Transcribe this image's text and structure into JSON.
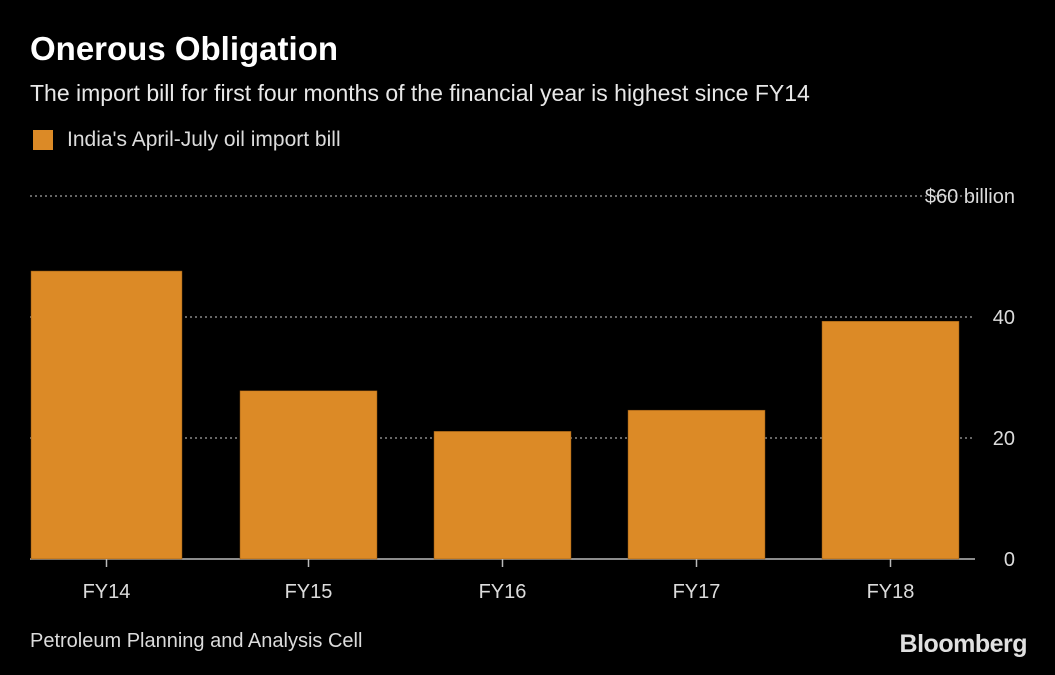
{
  "chart_data": {
    "type": "bar",
    "title": "Onerous Obligation",
    "subtitle": "The import bill for first four months of the financial year is highest since FY14",
    "categories": [
      "FY14",
      "FY15",
      "FY16",
      "FY17",
      "FY18"
    ],
    "series": [
      {
        "name": "India's April-July oil import bill",
        "values": [
          47.6,
          27.8,
          21.1,
          24.6,
          39.3
        ],
        "color": "#dc8a26"
      }
    ],
    "ylim": [
      0,
      60
    ],
    "yticks": [
      0,
      20,
      40,
      60
    ],
    "ytick_labels": [
      "0",
      "20",
      "40",
      "$60 billion"
    ],
    "y_axis_side": "right",
    "grid": true,
    "legend_position": "top-left",
    "source": "Petroleum Planning and Analysis Cell",
    "logo": "Bloomberg"
  }
}
